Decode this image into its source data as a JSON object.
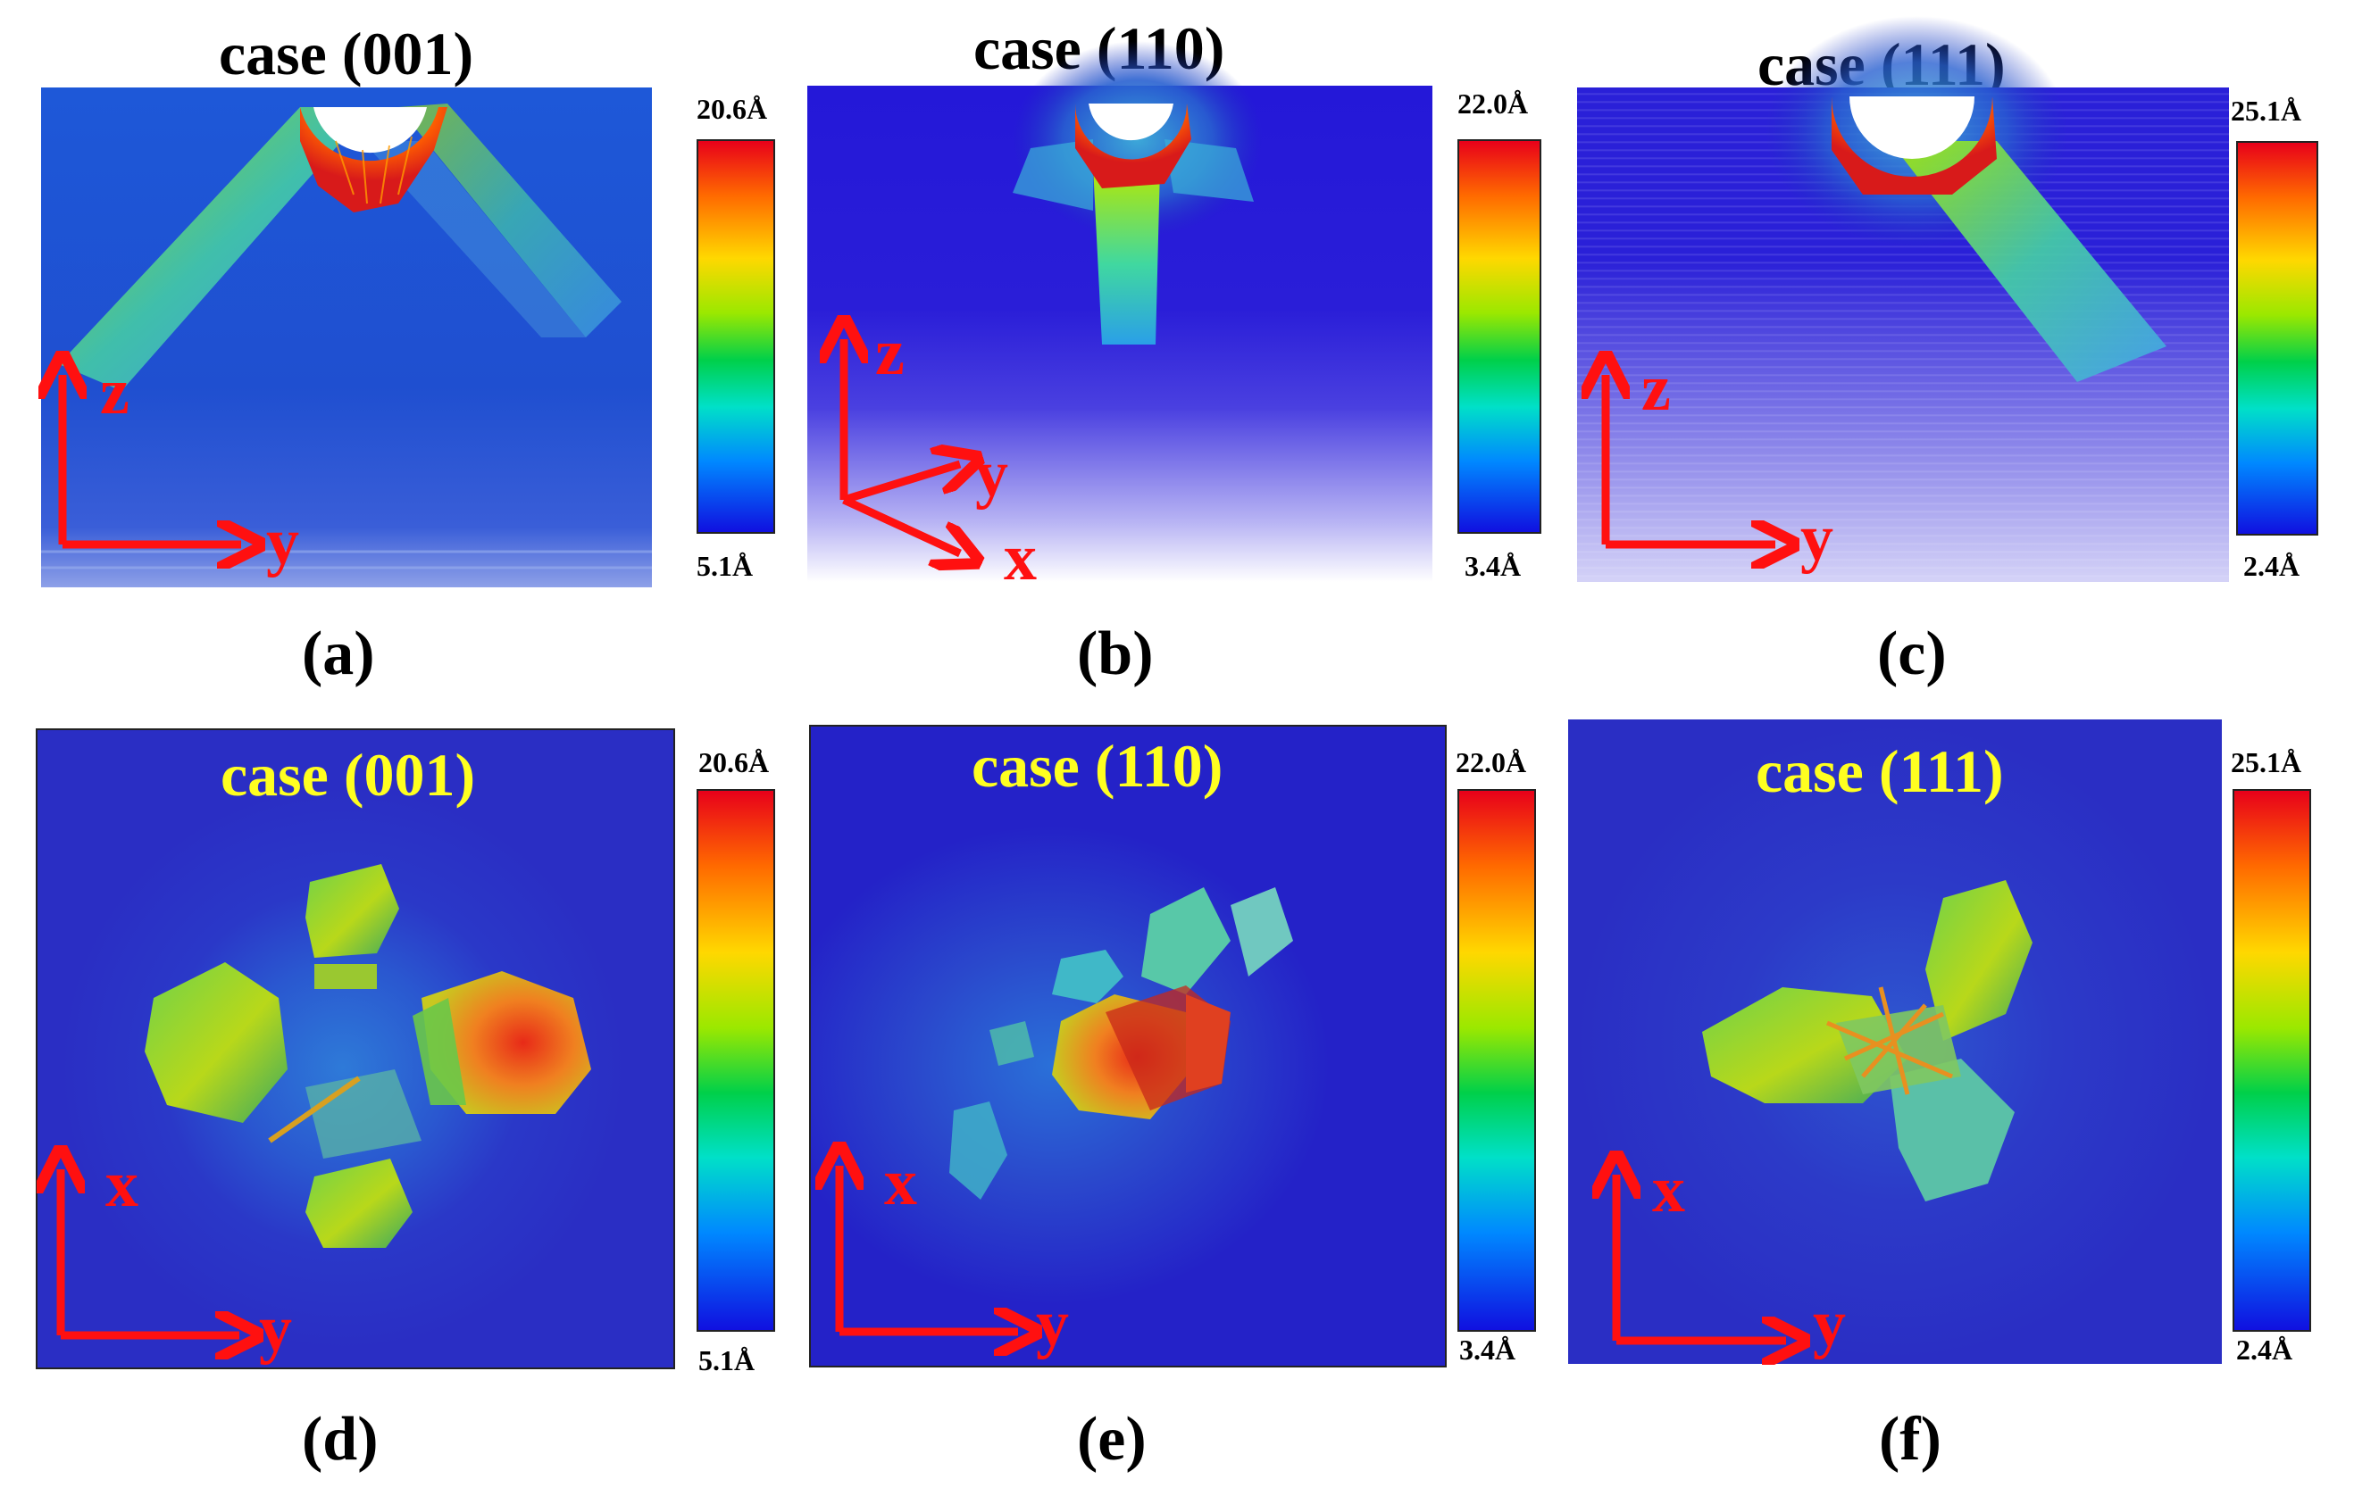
{
  "panels": [
    {
      "id": "a",
      "title": "case (001)",
      "label": "(a)",
      "cmax": "20.6Å",
      "cmin": "5.1Å",
      "axes": [
        "z",
        "y"
      ]
    },
    {
      "id": "b",
      "title": "case (110)",
      "label": "(b)",
      "cmax": "22.0Å",
      "cmin": "3.4Å",
      "axes": [
        "z",
        "y",
        "x"
      ]
    },
    {
      "id": "c",
      "title": "case (111)",
      "label": "(c)",
      "cmax": "25.1Å",
      "cmin": "2.4Å",
      "axes": [
        "z",
        "y"
      ]
    },
    {
      "id": "d",
      "title": "case (001)",
      "label": "(d)",
      "cmax": "20.6Å",
      "cmin": "5.1Å",
      "axes": [
        "x",
        "y"
      ]
    },
    {
      "id": "e",
      "title": "case (110)",
      "label": "(e)",
      "cmax": "22.0Å",
      "cmin": "3.4Å",
      "axes": [
        "x",
        "y"
      ]
    },
    {
      "id": "f",
      "title": "case (111)",
      "label": "(f)",
      "cmax": "25.1Å",
      "cmin": "2.4Å",
      "axes": [
        "x",
        "y"
      ]
    }
  ],
  "colors": {
    "axis": "#ff1010",
    "title_top": "#000000",
    "title_bottom": "#ffff20"
  }
}
